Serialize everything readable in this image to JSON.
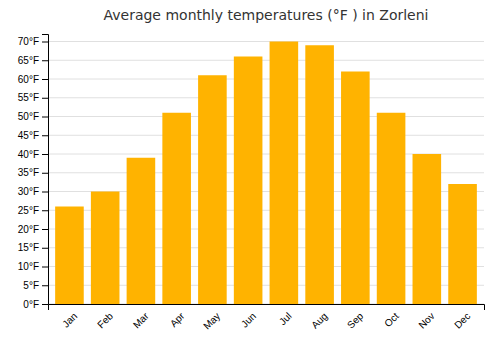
{
  "chart_data": {
    "type": "bar",
    "title": "Average monthly temperatures (°F ) in Zorleni",
    "categories": [
      "Jan",
      "Feb",
      "Mar",
      "Apr",
      "May",
      "Jun",
      "Jul",
      "Aug",
      "Sep",
      "Oct",
      "Nov",
      "Dec"
    ],
    "values": [
      26,
      30,
      39,
      51,
      61,
      66,
      70,
      69,
      62,
      51,
      40,
      32
    ],
    "color": "#FFB300",
    "ylim": [
      0,
      72
    ],
    "yticks": [
      {
        "value": 0,
        "label": "0°F"
      },
      {
        "value": 5,
        "label": "5°F"
      },
      {
        "value": 10,
        "label": "10°F"
      },
      {
        "value": 15,
        "label": "15°F"
      },
      {
        "value": 20,
        "label": "20°F"
      },
      {
        "value": 25,
        "label": "25°F"
      },
      {
        "value": 30,
        "label": "30°F"
      },
      {
        "value": 35,
        "label": "35°F"
      },
      {
        "value": 40,
        "label": "40°F"
      },
      {
        "value": 45,
        "label": "45°F"
      },
      {
        "value": 50,
        "label": "50°F"
      },
      {
        "value": 55,
        "label": "55°F"
      },
      {
        "value": 60,
        "label": "60°F"
      },
      {
        "value": 65,
        "label": "65°F"
      },
      {
        "value": 70,
        "label": "70°F"
      }
    ],
    "grid": true
  }
}
